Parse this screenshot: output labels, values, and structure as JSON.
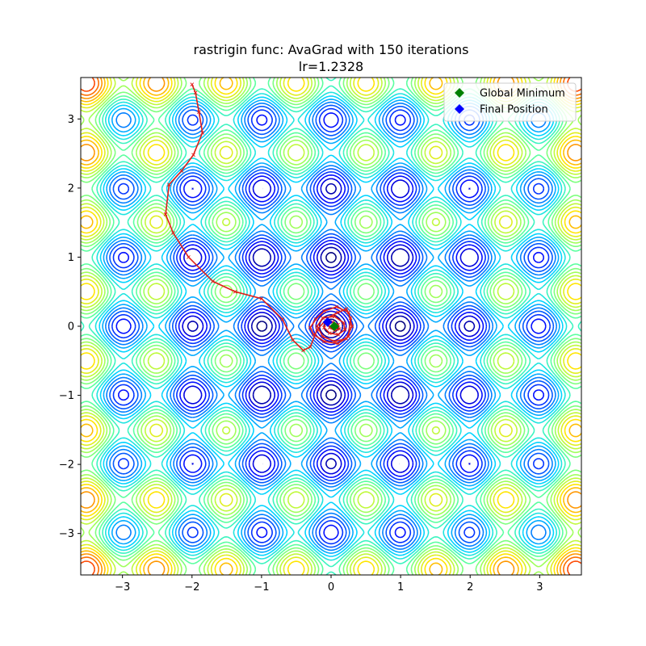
{
  "chart_data": {
    "type": "contour",
    "title_line1": "rastrigin func: AvaGrad with 150 iterations",
    "title_line2": "lr=1.2328",
    "xlim": [
      -3.6,
      3.6
    ],
    "ylim": [
      -3.6,
      3.6
    ],
    "xticks": [
      -3,
      -2,
      -1,
      0,
      1,
      2,
      3
    ],
    "yticks": [
      -3,
      -2,
      -1,
      0,
      1,
      2,
      3
    ],
    "tick_labels": [
      "−3",
      "−2",
      "−1",
      "0",
      "1",
      "2",
      "3"
    ],
    "function": "rastrigin",
    "contour_levels": [
      2,
      5,
      8,
      11,
      14,
      17,
      20,
      23,
      26,
      29,
      32,
      35,
      38,
      41,
      44,
      47,
      50,
      53,
      56,
      59,
      62,
      65,
      68,
      71,
      74
    ],
    "colormap": [
      "#00007f",
      "#0000ff",
      "#0063ff",
      "#00d4ff",
      "#4dffaa",
      "#aaff4d",
      "#ffe500",
      "#ff7d00",
      "#fa1000",
      "#7f0000"
    ],
    "legend": {
      "position": "upper right",
      "entries": [
        {
          "label": "Global Minimum",
          "color": "#008000",
          "marker": "diamond"
        },
        {
          "label": "Final Position",
          "color": "#0000ff",
          "marker": "diamond"
        }
      ]
    },
    "global_minimum": {
      "x": 0.0,
      "y": 0.0
    },
    "final_position": {
      "x": -0.05,
      "y": 0.06
    },
    "trajectory_color": "#e0201a",
    "trajectory": [
      [
        -2.0,
        3.5
      ],
      [
        -1.95,
        3.38
      ],
      [
        -1.9,
        3.1
      ],
      [
        -1.85,
        2.8
      ],
      [
        -1.98,
        2.48
      ],
      [
        -2.15,
        2.25
      ],
      [
        -2.33,
        2.05
      ],
      [
        -2.38,
        1.62
      ],
      [
        -2.27,
        1.35
      ],
      [
        -2.05,
        1.0
      ],
      [
        -1.7,
        0.65
      ],
      [
        -1.38,
        0.5
      ],
      [
        -1.0,
        0.4
      ],
      [
        -0.7,
        0.1
      ],
      [
        -0.55,
        -0.2
      ],
      [
        -0.4,
        -0.35
      ],
      [
        -0.3,
        -0.3
      ],
      [
        -0.2,
        -0.05
      ],
      [
        -0.05,
        0.12
      ],
      [
        0.1,
        0.2
      ],
      [
        0.22,
        0.25
      ],
      [
        0.28,
        0.12
      ],
      [
        0.25,
        -0.15
      ],
      [
        0.1,
        -0.25
      ],
      [
        -0.1,
        -0.22
      ],
      [
        -0.25,
        -0.12
      ],
      [
        -0.3,
        -0.02
      ],
      [
        -0.22,
        0.1
      ],
      [
        -0.1,
        0.22
      ],
      [
        0.08,
        0.28
      ],
      [
        0.25,
        0.2
      ],
      [
        0.3,
        0.0
      ],
      [
        0.22,
        -0.18
      ],
      [
        0.05,
        -0.22
      ],
      [
        -0.12,
        -0.15
      ],
      [
        -0.2,
        0.0
      ],
      [
        -0.12,
        0.12
      ],
      [
        0.05,
        0.14
      ],
      [
        0.18,
        0.05
      ],
      [
        0.2,
        -0.05
      ],
      [
        0.1,
        -0.12
      ],
      [
        -0.02,
        -0.1
      ],
      [
        -0.1,
        -0.02
      ],
      [
        -0.08,
        0.05
      ],
      [
        0.02,
        0.06
      ],
      [
        0.1,
        0.02
      ],
      [
        0.12,
        -0.04
      ],
      [
        0.05,
        -0.06
      ],
      [
        -0.02,
        -0.02
      ],
      [
        -0.05,
        0.06
      ]
    ]
  }
}
